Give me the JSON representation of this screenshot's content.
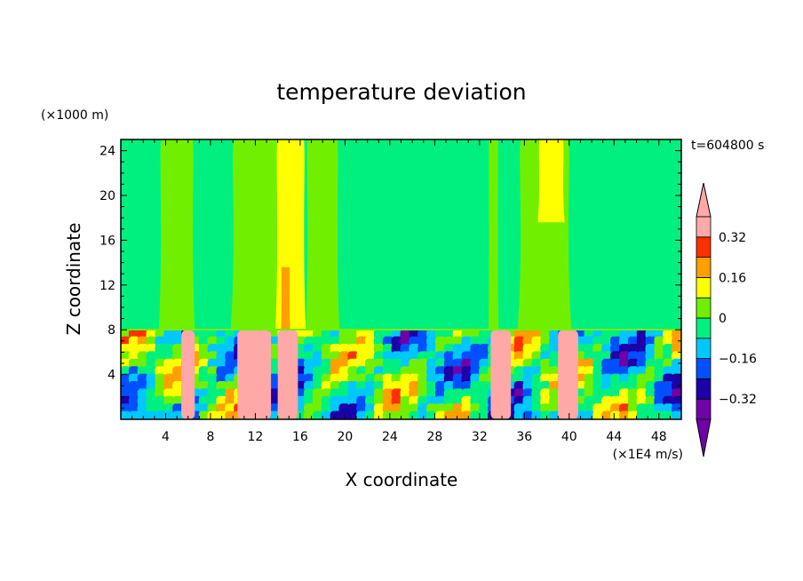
{
  "chart_data": {
    "type": "heatmap",
    "title": "temperature deviation",
    "xlabel": "X coordinate",
    "ylabel": "Z coordinate",
    "x_unit": "(×1E4 m/s)",
    "y_unit": "(×1000 m)",
    "time_label": "t=604800 s",
    "xlim": [
      0,
      50
    ],
    "ylim": [
      0,
      25
    ],
    "x_ticks": [
      4,
      8,
      12,
      16,
      20,
      24,
      28,
      32,
      36,
      40,
      44,
      48
    ],
    "y_ticks": [
      4,
      8,
      12,
      16,
      20,
      24
    ],
    "colorbar": {
      "levels": [
        -0.4,
        -0.32,
        -0.24,
        -0.16,
        -0.08,
        0,
        0.08,
        0.16,
        0.24,
        0.32,
        0.4
      ],
      "colors": [
        "#7000a8",
        "#1c00a8",
        "#0050ff",
        "#00c8ff",
        "#00f080",
        "#70f000",
        "#ffff00",
        "#ffa000",
        "#ff3000",
        "#ffa8a8"
      ],
      "under_color": "#7000a8",
      "over_color": "#ffa8a8",
      "tick_labels": [
        "0.32",
        "0.16",
        "0",
        "−0.16",
        "−0.32"
      ]
    },
    "upper_layer": {
      "z_range": [
        8,
        25
      ],
      "background": "#00f080",
      "bands": [
        {
          "x": [
            3.4,
            6.6
          ],
          "z": [
            8,
            25
          ],
          "color": "#70f000"
        },
        {
          "x": [
            9.8,
            14.4
          ],
          "z": [
            8,
            25
          ],
          "color": "#70f000"
        },
        {
          "x": [
            13.8,
            16.5
          ],
          "z": [
            8,
            25
          ],
          "color": "#ffff00"
        },
        {
          "x": [
            16.5,
            19.5
          ],
          "z": [
            8,
            25
          ],
          "color": "#70f000"
        },
        {
          "x": [
            32.8,
            33.7
          ],
          "z": [
            8,
            25
          ],
          "color": "#70f000"
        },
        {
          "x": [
            35.4,
            40.2
          ],
          "z": [
            8,
            25
          ],
          "color": "#70f000"
        },
        {
          "x": [
            37.2,
            39.6
          ],
          "z": [
            17.6,
            25
          ],
          "color": "#ffff00"
        },
        {
          "x": [
            14.3,
            15.1
          ],
          "z": [
            8,
            13.6
          ],
          "color": "#ffa000"
        }
      ]
    },
    "lower_layer": {
      "z_range": [
        0,
        8
      ],
      "description_colors": "turbulent mix of all contour levels",
      "pink_columns": [
        [
          5.4,
          6.6
        ],
        [
          10.4,
          13.4
        ],
        [
          14.0,
          15.8
        ],
        [
          33.0,
          34.8
        ],
        [
          39.0,
          40.8
        ]
      ]
    }
  }
}
